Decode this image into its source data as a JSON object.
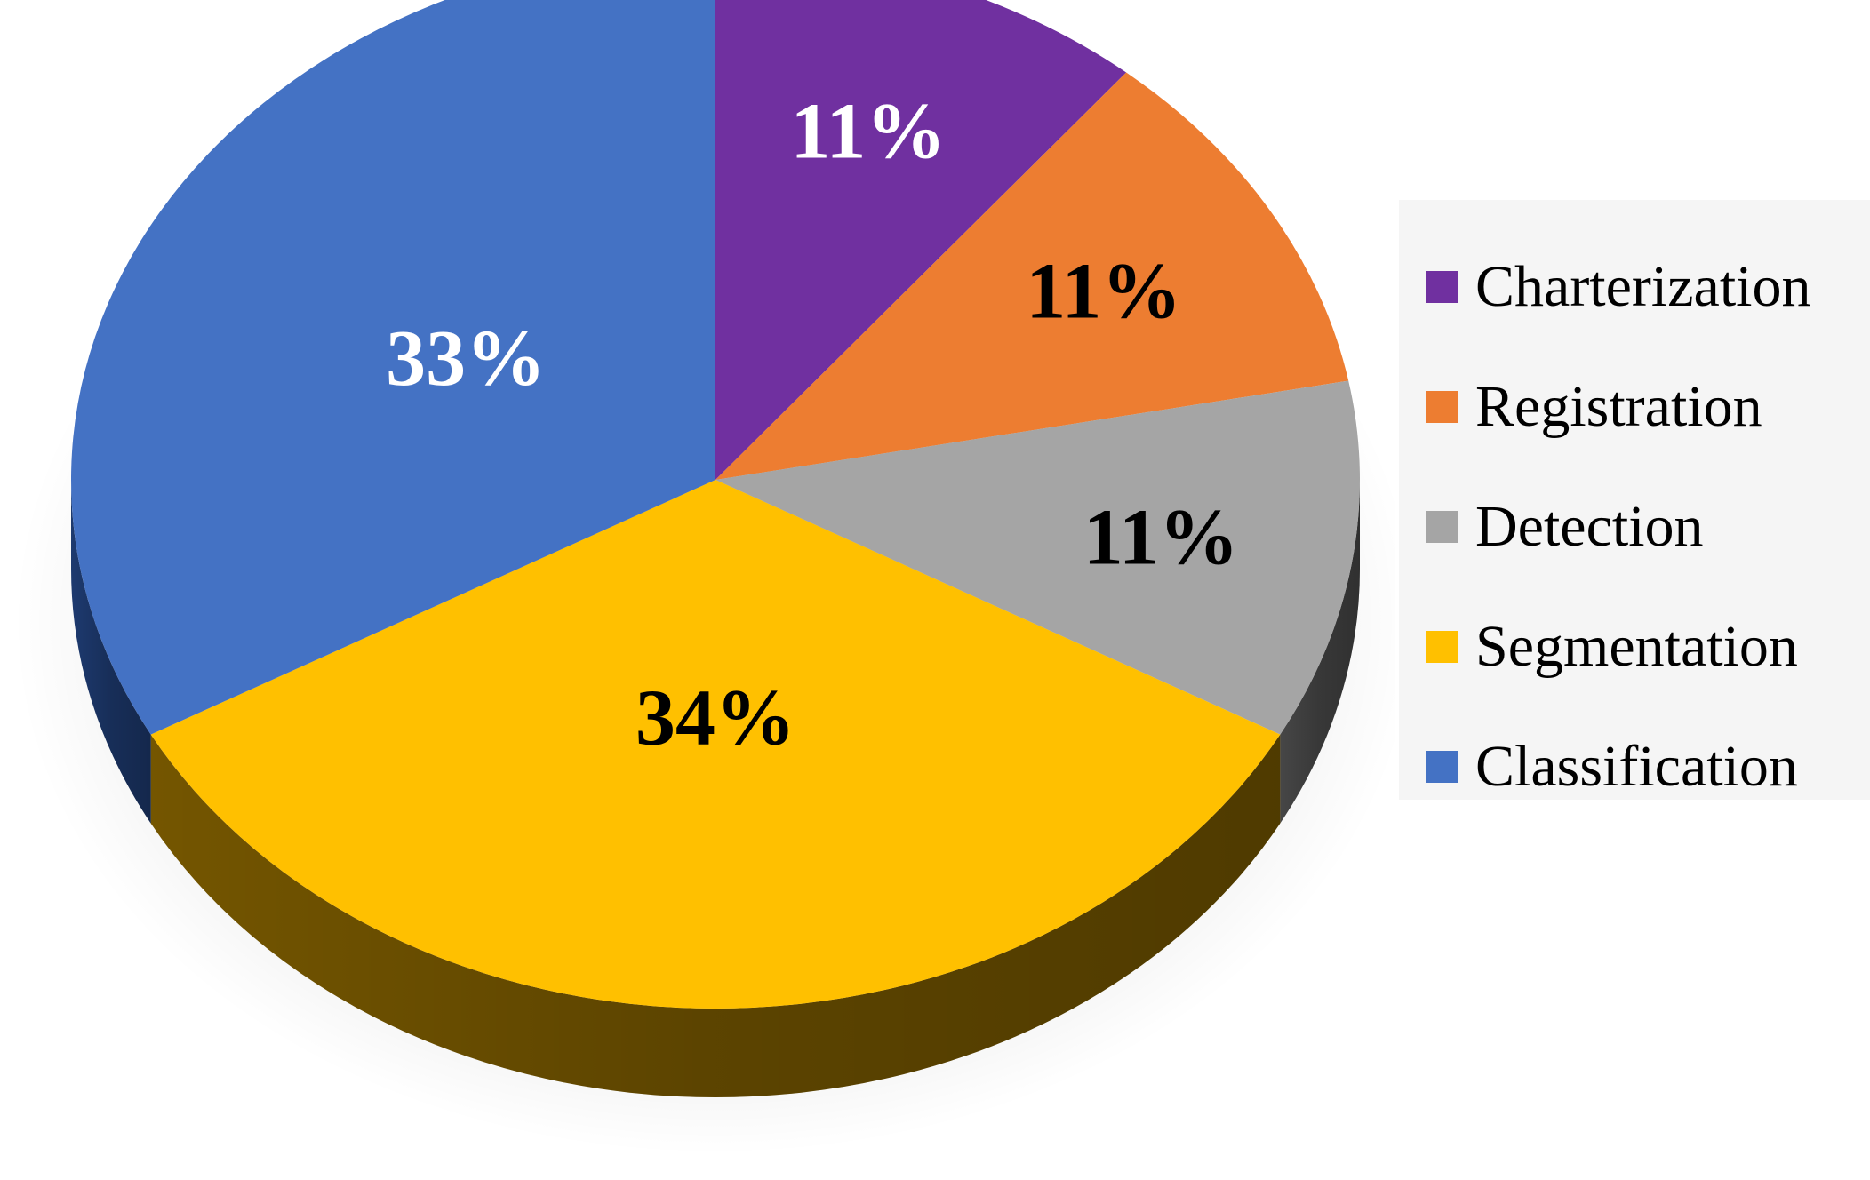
{
  "chart_data": {
    "type": "pie",
    "style": "3d",
    "legend_position": "right",
    "slices": [
      {
        "label": "Charterization",
        "value": 11,
        "value_label": "11%",
        "color": "#7030a0",
        "side_color": "#3a1858",
        "text_color": "#ffffff"
      },
      {
        "label": "Registration",
        "value": 11,
        "value_label": "11%",
        "color": "#ed7d31",
        "side_color": "#8a4519",
        "text_color": "#000000"
      },
      {
        "label": "Detection",
        "value": 11,
        "value_label": "11%",
        "color": "#a5a5a5",
        "side_color": "#4a4a4a",
        "text_color": "#000000"
      },
      {
        "label": "Segmentation",
        "value": 34,
        "value_label": "34%",
        "color": "#ffc000",
        "side_color": "#7a5a00",
        "text_color": "#000000"
      },
      {
        "label": "Classification",
        "value": 33,
        "value_label": "33%",
        "color": "#4472c4",
        "side_color": "#1f3d75",
        "text_color": "#ffffff"
      }
    ]
  }
}
